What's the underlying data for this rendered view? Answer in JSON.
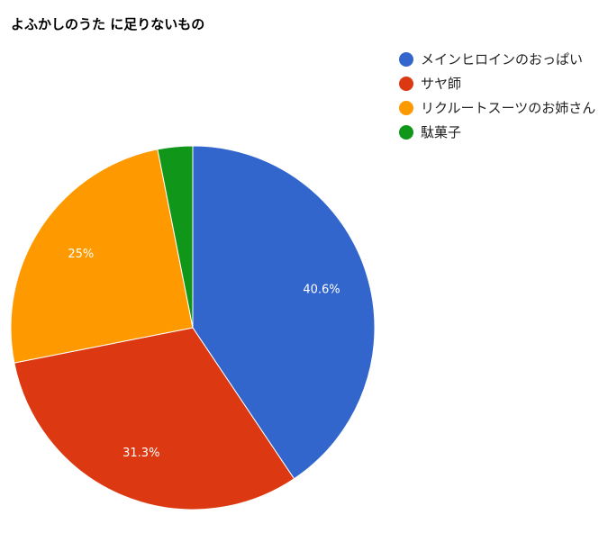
{
  "chart_data": {
    "type": "pie",
    "title": "よふかしのうた に足りないもの",
    "legend_position": "right",
    "slices": [
      {
        "label": "メインヒロインのおっぱい",
        "value": 40.6,
        "display": "40.6%",
        "color": "#3366cc"
      },
      {
        "label": "サヤ師",
        "value": 31.3,
        "display": "31.3%",
        "color": "#dc3912"
      },
      {
        "label": "リクルートスーツのお姉さん",
        "value": 25,
        "display": "25%",
        "color": "#ff9900"
      },
      {
        "label": "駄菓子",
        "value": 3.1,
        "display": "",
        "color": "#109618"
      }
    ]
  }
}
